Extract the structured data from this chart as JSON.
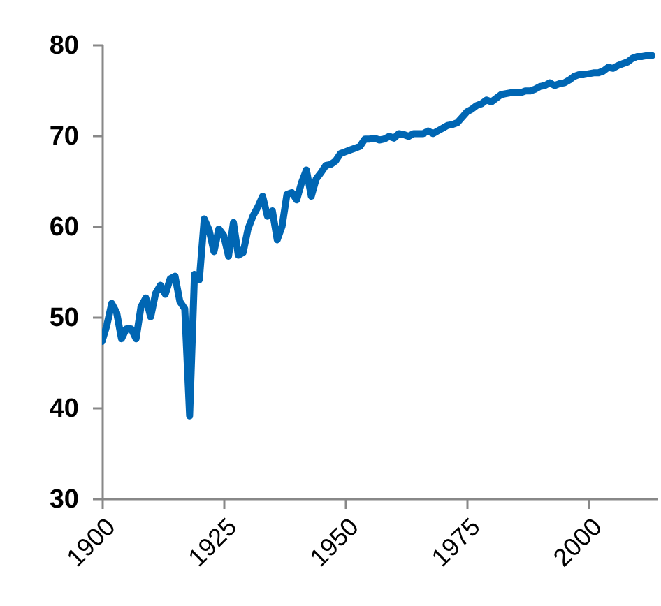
{
  "chart_data": {
    "type": "line",
    "x": [
      1900,
      1901,
      1902,
      1903,
      1904,
      1905,
      1906,
      1907,
      1908,
      1909,
      1910,
      1911,
      1912,
      1913,
      1914,
      1915,
      1916,
      1917,
      1918,
      1919,
      1920,
      1921,
      1922,
      1923,
      1924,
      1925,
      1926,
      1927,
      1928,
      1929,
      1930,
      1931,
      1932,
      1933,
      1934,
      1935,
      1936,
      1937,
      1938,
      1939,
      1940,
      1941,
      1942,
      1943,
      1944,
      1945,
      1946,
      1947,
      1948,
      1949,
      1950,
      1951,
      1952,
      1953,
      1954,
      1955,
      1956,
      1957,
      1958,
      1959,
      1960,
      1961,
      1962,
      1963,
      1964,
      1965,
      1966,
      1967,
      1968,
      1969,
      1970,
      1971,
      1972,
      1973,
      1974,
      1975,
      1976,
      1977,
      1978,
      1979,
      1980,
      1981,
      1982,
      1983,
      1984,
      1985,
      1986,
      1987,
      1988,
      1989,
      1990,
      1991,
      1992,
      1993,
      1994,
      1995,
      1996,
      1997,
      1998,
      1999,
      2000,
      2001,
      2002,
      2003,
      2004,
      2005,
      2006,
      2007,
      2008,
      2009,
      2010,
      2011,
      2012,
      2013
    ],
    "series": [
      {
        "color": "#0066b3",
        "values": [
          47.3,
          49.1,
          51.5,
          50.5,
          47.6,
          48.7,
          48.7,
          47.6,
          51.1,
          52.1,
          50.0,
          52.6,
          53.5,
          52.5,
          54.2,
          54.5,
          51.7,
          50.9,
          39.1,
          54.7,
          54.1,
          60.8,
          59.6,
          57.2,
          59.7,
          59.0,
          56.7,
          60.4,
          56.8,
          57.1,
          59.7,
          61.1,
          62.1,
          63.3,
          61.1,
          61.7,
          58.5,
          60.0,
          63.5,
          63.7,
          62.9,
          64.8,
          66.2,
          63.3,
          65.2,
          65.9,
          66.7,
          66.8,
          67.2,
          68.0,
          68.2,
          68.4,
          68.6,
          68.8,
          69.6,
          69.6,
          69.7,
          69.5,
          69.6,
          69.9,
          69.7,
          70.2,
          70.1,
          69.9,
          70.2,
          70.2,
          70.2,
          70.5,
          70.2,
          70.5,
          70.8,
          71.1,
          71.2,
          71.4,
          72.0,
          72.6,
          72.9,
          73.3,
          73.5,
          73.9,
          73.7,
          74.1,
          74.5,
          74.6,
          74.7,
          74.7,
          74.7,
          74.9,
          74.9,
          75.1,
          75.4,
          75.5,
          75.8,
          75.5,
          75.7,
          75.8,
          76.1,
          76.5,
          76.7,
          76.7,
          76.8,
          76.9,
          76.9,
          77.1,
          77.5,
          77.4,
          77.7,
          77.9,
          78.1,
          78.5,
          78.7,
          78.7,
          78.8,
          78.8
        ]
      }
    ],
    "xlim": [
      1900,
      2014
    ],
    "xticks": [
      1900,
      1925,
      1950,
      1975,
      2000
    ],
    "ylim": [
      30,
      80
    ],
    "yticks": [
      30,
      40,
      50,
      60,
      70,
      80
    ],
    "grid": false,
    "legend": false
  }
}
